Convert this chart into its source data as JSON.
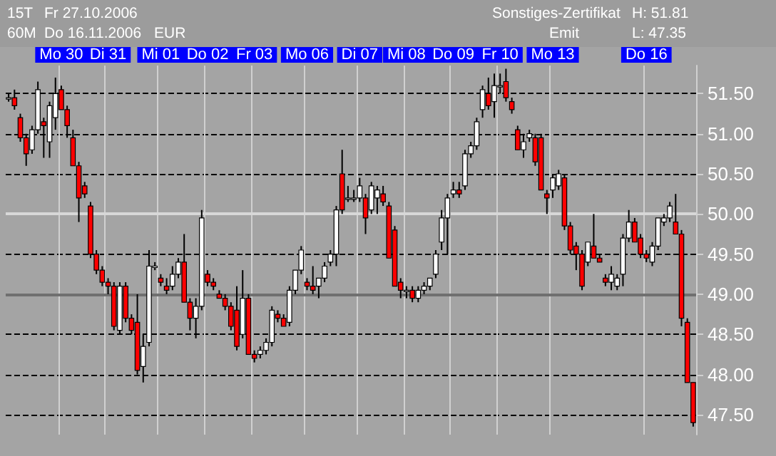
{
  "chart_data": {
    "type": "candlestick",
    "annotations": [
      "15T",
      "Fr 27.10.2006",
      "60M",
      "Do 16.11.2006",
      "EUR",
      "Sonstiges-Zertifikat",
      "Emit",
      "H: 51.81",
      "L: 47.35"
    ],
    "categories": [
      null,
      null,
      null,
      null,
      null,
      null,
      null,
      null,
      null,
      "Mo 30",
      null,
      null,
      null,
      null,
      null,
      null,
      null,
      "Di 31",
      null,
      null,
      null,
      null,
      null,
      null,
      null,
      null,
      "Mi 01",
      null,
      null,
      null,
      null,
      null,
      null,
      null,
      "Do 02",
      null,
      null,
      null,
      null,
      null,
      null,
      null,
      "Fr 03",
      null,
      null,
      null,
      null,
      null,
      null,
      null,
      null,
      "Mo 06",
      null,
      null,
      null,
      null,
      null,
      null,
      null,
      null,
      "Di 07",
      null,
      null,
      null,
      null,
      null,
      null,
      null,
      "Mi 08",
      null,
      null,
      null,
      null,
      null,
      null,
      null,
      "Do 09",
      null,
      null,
      null,
      null,
      null,
      null,
      null,
      "Fr 10",
      null,
      null,
      null,
      null,
      null,
      null,
      null,
      null,
      "Mo 13",
      null,
      null,
      null,
      null,
      null,
      null,
      null,
      null,
      null,
      null,
      null,
      null,
      null,
      null,
      null,
      "Do 16",
      null,
      null,
      null,
      null,
      null,
      null,
      null,
      null
    ],
    "ohlc": [
      [
        51.45,
        51.5,
        51.4,
        51.45
      ],
      [
        51.45,
        51.55,
        51.3,
        51.35
      ],
      [
        51.2,
        51.25,
        50.9,
        50.95
      ],
      [
        50.95,
        51.0,
        50.6,
        50.75
      ],
      [
        50.8,
        51.1,
        50.75,
        51.05
      ],
      [
        51.05,
        51.65,
        51.0,
        51.55
      ],
      [
        51.15,
        51.2,
        50.7,
        51.1
      ],
      [
        50.9,
        51.4,
        50.7,
        51.35
      ],
      [
        51.2,
        51.7,
        51.05,
        51.5
      ],
      [
        51.55,
        51.6,
        51.3,
        51.3
      ],
      [
        51.3,
        51.35,
        50.95,
        51.1
      ],
      [
        50.95,
        51.05,
        50.6,
        50.6
      ],
      [
        50.6,
        50.65,
        49.9,
        50.2
      ],
      [
        50.35,
        50.4,
        50.2,
        50.25
      ],
      [
        50.1,
        50.15,
        49.45,
        49.5
      ],
      [
        49.5,
        49.55,
        49.25,
        49.3
      ],
      [
        49.3,
        49.35,
        49.1,
        49.15
      ],
      [
        49.15,
        49.2,
        49.0,
        49.1
      ],
      [
        49.1,
        49.15,
        48.55,
        48.6
      ],
      [
        48.55,
        49.15,
        48.5,
        49.1
      ],
      [
        49.1,
        49.15,
        48.65,
        48.7
      ],
      [
        48.7,
        48.75,
        48.5,
        48.55
      ],
      [
        48.65,
        49.0,
        48.0,
        48.05
      ],
      [
        48.1,
        48.5,
        47.9,
        48.35
      ],
      [
        48.4,
        49.55,
        48.35,
        49.35
      ],
      [
        49.35,
        49.4,
        49.3,
        49.35
      ],
      [
        49.2,
        49.25,
        49.1,
        49.15
      ],
      [
        49.1,
        49.2,
        49.0,
        49.05
      ],
      [
        49.1,
        49.35,
        49.05,
        49.25
      ],
      [
        49.25,
        49.45,
        49.2,
        49.4
      ],
      [
        49.4,
        49.75,
        48.9,
        48.9
      ],
      [
        48.9,
        48.95,
        48.55,
        48.7
      ],
      [
        48.7,
        48.95,
        48.45,
        48.85
      ],
      [
        48.85,
        50.05,
        48.8,
        49.95
      ],
      [
        49.25,
        49.3,
        49.1,
        49.15
      ],
      [
        49.15,
        49.2,
        49.05,
        49.1
      ],
      [
        49.0,
        49.05,
        48.95,
        48.95
      ],
      [
        48.95,
        49.0,
        48.8,
        48.85
      ],
      [
        48.85,
        48.9,
        48.55,
        48.6
      ],
      [
        48.8,
        49.1,
        48.3,
        48.35
      ],
      [
        48.5,
        49.3,
        48.45,
        48.95
      ],
      [
        48.95,
        49.0,
        48.25,
        48.25
      ],
      [
        48.25,
        48.3,
        48.15,
        48.2
      ],
      [
        48.25,
        48.35,
        48.2,
        48.3
      ],
      [
        48.3,
        48.45,
        48.25,
        48.4
      ],
      [
        48.4,
        48.85,
        48.35,
        48.8
      ],
      [
        48.75,
        48.8,
        48.65,
        48.7
      ],
      [
        48.7,
        48.75,
        48.6,
        48.6
      ],
      [
        48.65,
        49.1,
        48.6,
        49.05
      ],
      [
        49.05,
        49.3,
        49.0,
        49.3
      ],
      [
        49.3,
        49.6,
        49.25,
        49.55
      ],
      [
        49.15,
        49.2,
        49.05,
        49.1
      ],
      [
        49.1,
        49.35,
        49.0,
        49.05
      ],
      [
        49.1,
        49.2,
        48.95,
        49.2
      ],
      [
        49.2,
        49.4,
        49.15,
        49.35
      ],
      [
        49.4,
        49.55,
        49.35,
        49.5
      ],
      [
        49.5,
        50.1,
        49.35,
        50.05
      ],
      [
        50.5,
        50.8,
        50.0,
        50.05
      ],
      [
        50.2,
        50.35,
        50.15,
        50.2
      ],
      [
        50.2,
        50.3,
        50.15,
        50.2
      ],
      [
        50.2,
        50.45,
        50.15,
        50.35
      ],
      [
        50.2,
        50.25,
        49.75,
        49.95
      ],
      [
        50.05,
        50.4,
        50.0,
        50.35
      ],
      [
        50.2,
        50.35,
        50.0,
        50.3
      ],
      [
        50.25,
        50.35,
        50.1,
        50.15
      ],
      [
        50.1,
        50.15,
        49.45,
        49.45
      ],
      [
        49.8,
        49.85,
        49.1,
        49.1
      ],
      [
        49.15,
        49.2,
        48.95,
        49.05
      ],
      [
        49.05,
        49.1,
        48.95,
        49.05
      ],
      [
        49.05,
        49.1,
        48.9,
        48.95
      ],
      [
        48.95,
        49.1,
        48.9,
        49.05
      ],
      [
        49.05,
        49.15,
        49.0,
        49.1
      ],
      [
        49.1,
        49.2,
        49.05,
        49.2
      ],
      [
        49.25,
        49.55,
        49.2,
        49.5
      ],
      [
        49.65,
        50.05,
        49.55,
        49.95
      ],
      [
        49.95,
        50.25,
        49.5,
        50.2
      ],
      [
        50.25,
        50.4,
        50.2,
        50.3
      ],
      [
        50.3,
        50.4,
        50.2,
        50.25
      ],
      [
        50.35,
        50.8,
        50.3,
        50.75
      ],
      [
        50.75,
        50.9,
        50.7,
        50.85
      ],
      [
        50.85,
        51.2,
        50.8,
        51.15
      ],
      [
        51.3,
        51.6,
        51.2,
        51.55
      ],
      [
        51.5,
        51.7,
        51.3,
        51.35
      ],
      [
        51.4,
        51.75,
        51.2,
        51.6
      ],
      [
        51.6,
        51.75,
        51.5,
        51.6
      ],
      [
        51.65,
        51.81,
        51.4,
        51.45
      ],
      [
        51.4,
        51.45,
        51.25,
        51.3
      ],
      [
        51.05,
        51.1,
        50.8,
        50.8
      ],
      [
        50.8,
        51.0,
        50.7,
        50.9
      ],
      [
        50.95,
        51.05,
        50.9,
        51.0
      ],
      [
        50.95,
        51.0,
        50.6,
        50.65
      ],
      [
        50.95,
        51.0,
        50.3,
        50.3
      ],
      [
        50.25,
        50.3,
        50.0,
        50.2
      ],
      [
        50.3,
        50.5,
        50.2,
        50.45
      ],
      [
        50.35,
        50.55,
        50.3,
        50.5
      ],
      [
        50.45,
        50.5,
        49.8,
        49.85
      ],
      [
        49.85,
        49.9,
        49.5,
        49.55
      ],
      [
        49.6,
        49.65,
        49.3,
        49.5
      ],
      [
        49.5,
        49.55,
        49.05,
        49.1
      ],
      [
        49.4,
        49.65,
        49.35,
        49.65
      ],
      [
        49.6,
        50.0,
        49.45,
        49.45
      ],
      [
        49.45,
        49.5,
        49.4,
        49.4
      ],
      [
        49.2,
        49.25,
        49.1,
        49.15
      ],
      [
        49.15,
        49.35,
        49.05,
        49.25
      ],
      [
        49.1,
        49.25,
        49.05,
        49.2
      ],
      [
        49.25,
        49.75,
        49.1,
        49.7
      ],
      [
        49.7,
        50.05,
        49.65,
        49.9
      ],
      [
        49.9,
        49.95,
        49.65,
        49.65
      ],
      [
        49.7,
        49.75,
        49.45,
        49.5
      ],
      [
        49.5,
        49.55,
        49.4,
        49.45
      ],
      [
        49.4,
        49.65,
        49.35,
        49.6
      ],
      [
        49.6,
        49.95,
        49.55,
        49.95
      ],
      [
        49.9,
        50.0,
        49.85,
        49.95
      ],
      [
        49.95,
        50.15,
        49.9,
        50.1
      ],
      [
        49.9,
        50.25,
        49.75,
        49.75
      ],
      [
        49.75,
        49.8,
        48.6,
        48.7
      ],
      [
        48.65,
        48.7,
        47.9,
        47.9
      ],
      [
        47.9,
        47.9,
        47.35,
        47.4
      ]
    ],
    "ylim": [
      47.25,
      51.85
    ],
    "yticks": [
      {
        "value": 47.5,
        "label": "47.50"
      },
      {
        "value": 48,
        "label": "48.00"
      },
      {
        "value": 48.5,
        "label": "48.50"
      },
      {
        "value": 49,
        "label": "49.00"
      },
      {
        "value": 49.5,
        "label": "49.50"
      },
      {
        "value": 50,
        "label": "50.00"
      },
      {
        "value": 50.5,
        "label": "50.50"
      },
      {
        "value": 51,
        "label": "51.00"
      },
      {
        "value": 51.5,
        "label": "51.50"
      }
    ],
    "ref_lines": [
      {
        "axis": "y",
        "value": 50,
        "color": "#d8d8d8"
      },
      {
        "axis": "y",
        "value": 49,
        "color": "#707070"
      }
    ],
    "grid": true
  }
}
